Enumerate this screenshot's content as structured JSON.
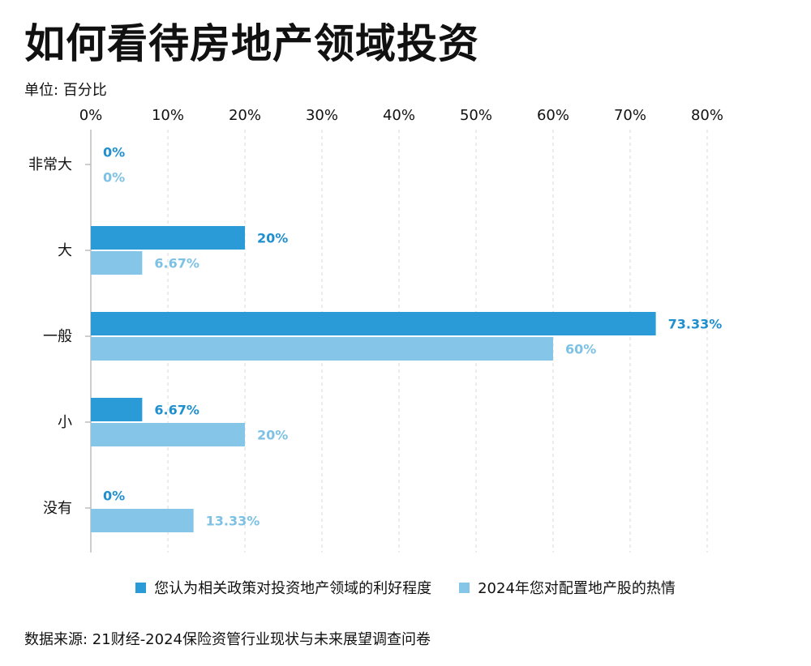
{
  "title": "如何看待房地产领域投资",
  "unit_label": "单位: 百分比",
  "source": "数据来源: 21财经-2024保险资管行业现状与未来展望调查问卷",
  "colors": {
    "series1": "#2b9bd8",
    "series2": "#85c6e8",
    "label1": "#1f8fce",
    "label2": "#7dc1e4",
    "grid": "#d9d9d9",
    "axis": "#bdbdbd"
  },
  "chart_data": {
    "type": "bar",
    "orientation": "horizontal",
    "title": "如何看待房地产领域投资",
    "xlabel": "",
    "ylabel": "",
    "unit": "单位: 百分比",
    "xlim": [
      0,
      80
    ],
    "ticks": [
      0,
      10,
      20,
      30,
      40,
      50,
      60,
      70,
      80
    ],
    "tick_labels": [
      "0%",
      "10%",
      "20%",
      "30%",
      "40%",
      "50%",
      "60%",
      "70%",
      "80%"
    ],
    "grid": true,
    "legend_position": "bottom",
    "categories": [
      "非常大",
      "大",
      "一般",
      "小",
      "没有"
    ],
    "series": [
      {
        "name": "您认为相关政策对投资地产领域的利好程度",
        "values": [
          0,
          20,
          73.33,
          6.67,
          0
        ],
        "labels": [
          "0%",
          "20%",
          "73.33%",
          "6.67%",
          "0%"
        ]
      },
      {
        "name": "2024年您对配置地产股的热情",
        "values": [
          0,
          6.67,
          60,
          20,
          13.33
        ],
        "labels": [
          "0%",
          "6.67%",
          "60%",
          "20%",
          "13.33%"
        ]
      }
    ]
  }
}
